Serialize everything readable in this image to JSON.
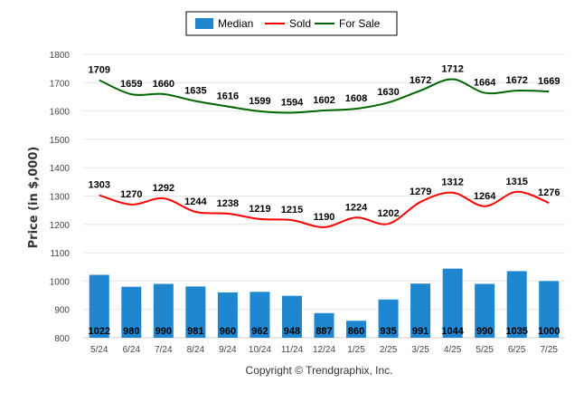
{
  "chart_data": {
    "type": "bar",
    "title": "",
    "xlabel": "",
    "ylabel": "Price (in $,000)",
    "ylim": [
      800,
      1800
    ],
    "yticks": [
      800,
      900,
      1000,
      1100,
      1200,
      1300,
      1400,
      1500,
      1600,
      1700,
      1800
    ],
    "grid": true,
    "legend_position": "top-center",
    "categories": [
      "5/24",
      "6/24",
      "7/24",
      "8/24",
      "9/24",
      "10/24",
      "11/24",
      "12/24",
      "1/25",
      "2/25",
      "3/25",
      "4/25",
      "5/25",
      "6/25",
      "7/25"
    ],
    "series": [
      {
        "name": "Median",
        "kind": "bar",
        "color": "#1f86d0",
        "values": [
          1022,
          980,
          990,
          981,
          960,
          962,
          948,
          887,
          860,
          935,
          991,
          1044,
          990,
          1035,
          1000
        ]
      },
      {
        "name": "Sold",
        "kind": "line",
        "color": "#ff0000",
        "values": [
          1303,
          1270,
          1292,
          1244,
          1238,
          1219,
          1215,
          1190,
          1224,
          1202,
          1279,
          1312,
          1264,
          1315,
          1276
        ]
      },
      {
        "name": "For Sale",
        "kind": "line",
        "color": "#006400",
        "values": [
          1709,
          1659,
          1660,
          1635,
          1616,
          1599,
          1594,
          1602,
          1608,
          1630,
          1672,
          1712,
          1664,
          1672,
          1669
        ]
      }
    ]
  },
  "footer": "Copyright © Trendgraphix, Inc."
}
